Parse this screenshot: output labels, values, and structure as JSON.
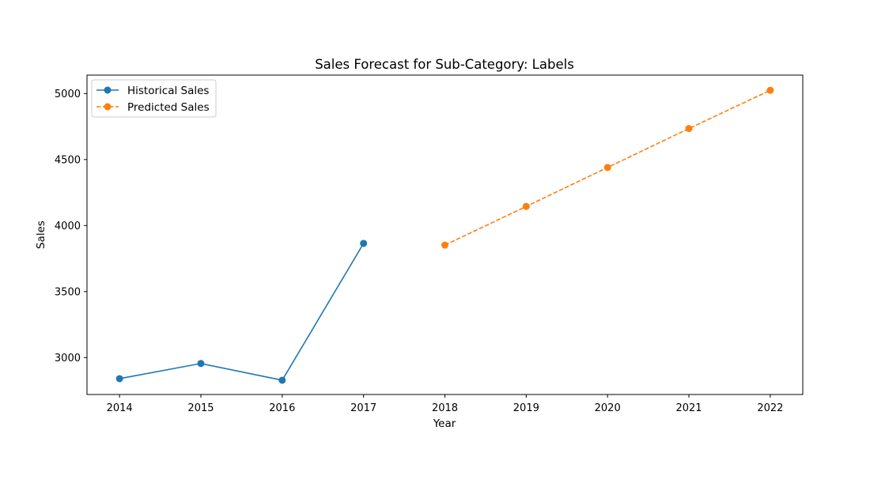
{
  "chart_data": {
    "type": "line",
    "title": "Sales Forecast for Sub-Category: Labels",
    "xlabel": "Year",
    "ylabel": "Sales",
    "xlim": [
      2013.6,
      2022.4
    ],
    "ylim": [
      2720,
      5140
    ],
    "x_ticks": [
      2014,
      2015,
      2016,
      2017,
      2018,
      2019,
      2020,
      2021,
      2022
    ],
    "y_ticks": [
      3000,
      3500,
      4000,
      4500,
      5000
    ],
    "grid": false,
    "legend_position": "upper-left",
    "series": [
      {
        "name": "Historical Sales",
        "color": "#1f77b4",
        "line_style": "solid",
        "marker": "circle",
        "x": [
          2014,
          2015,
          2016,
          2017
        ],
        "y": [
          2840,
          2955,
          2828,
          3865
        ]
      },
      {
        "name": "Predicted Sales",
        "color": "#ff7f0e",
        "line_style": "dashed",
        "marker": "circle",
        "x": [
          2018,
          2019,
          2020,
          2021,
          2022
        ],
        "y": [
          3852,
          4145,
          4440,
          4735,
          5025
        ]
      }
    ]
  }
}
